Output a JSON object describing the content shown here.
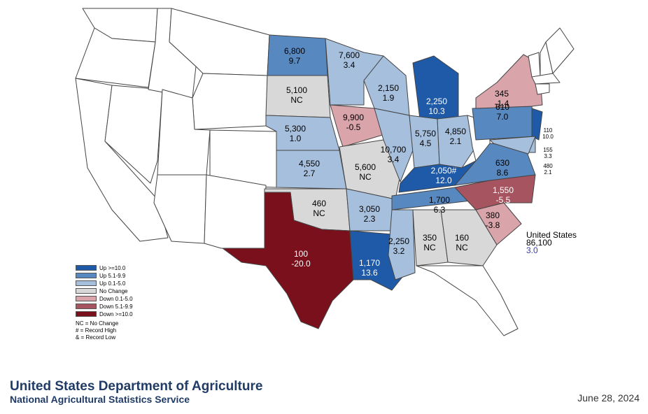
{
  "colors": {
    "up10": "#1f5aa8",
    "up5": "#5888c0",
    "up0": "#a6bfdd",
    "nc": "#d8d8d8",
    "down0": "#d9a5ab",
    "down5": "#a65560",
    "down10": "#7a101c",
    "outline": "#444444"
  },
  "legend": {
    "items": [
      {
        "label": "Up >=10.0",
        "color_key": "up10"
      },
      {
        "label": "Up 5.1-9.9",
        "color_key": "up5"
      },
      {
        "label": "Up 0.1-5.0",
        "color_key": "up0"
      },
      {
        "label": "No Change",
        "color_key": "nc"
      },
      {
        "label": "Down 0.1-5.0",
        "color_key": "down0"
      },
      {
        "label": "Down 5.1-9.9",
        "color_key": "down5"
      },
      {
        "label": "Down >=10.0",
        "color_key": "down10"
      }
    ],
    "notes": [
      "NC = No Change",
      "# = Record High",
      "& = Record Low"
    ]
  },
  "states": [
    {
      "name": "ND",
      "value": "6,800",
      "change": "9.7",
      "cat": "up5"
    },
    {
      "name": "SD",
      "value": "5,100",
      "change": "NC",
      "cat": "nc"
    },
    {
      "name": "NE",
      "value": "5,300",
      "change": "1.0",
      "cat": "up0"
    },
    {
      "name": "KS",
      "value": "4,550",
      "change": "2.7",
      "cat": "up0"
    },
    {
      "name": "OK",
      "value": "460",
      "change": "NC",
      "cat": "nc"
    },
    {
      "name": "TX",
      "value": "100",
      "change": "-20.0",
      "cat": "down10"
    },
    {
      "name": "MN",
      "value": "7,600",
      "change": "3.4",
      "cat": "up0"
    },
    {
      "name": "IA",
      "value": "9,900",
      "change": "-0.5",
      "cat": "down0"
    },
    {
      "name": "MO",
      "value": "5,600",
      "change": "NC",
      "cat": "nc"
    },
    {
      "name": "AR",
      "value": "3,050",
      "change": "2.3",
      "cat": "up0"
    },
    {
      "name": "LA",
      "value": "1,170",
      "change": "13.6",
      "cat": "up10"
    },
    {
      "name": "WI",
      "value": "2,150",
      "change": "1.9",
      "cat": "up0"
    },
    {
      "name": "IL",
      "value": "10,700",
      "change": "3.4",
      "cat": "up0"
    },
    {
      "name": "MS",
      "value": "2,250",
      "change": "3.2",
      "cat": "up0"
    },
    {
      "name": "MI",
      "value": "2,250",
      "change": "10.3",
      "cat": "up10"
    },
    {
      "name": "IN",
      "value": "5,750",
      "change": "4.5",
      "cat": "up0"
    },
    {
      "name": "KY",
      "value": "2,050#",
      "change": "12.0",
      "cat": "up10"
    },
    {
      "name": "TN",
      "value": "1,700",
      "change": "6.3",
      "cat": "up5"
    },
    {
      "name": "AL",
      "value": "350",
      "change": "NC",
      "cat": "nc"
    },
    {
      "name": "OH",
      "value": "4,850",
      "change": "2.1",
      "cat": "up0"
    },
    {
      "name": "GA",
      "value": "160",
      "change": "NC",
      "cat": "nc"
    },
    {
      "name": "PA",
      "value": "610",
      "change": "7.0",
      "cat": "up5"
    },
    {
      "name": "NY",
      "value": "345",
      "change": "-1.4",
      "cat": "down0"
    },
    {
      "name": "VA",
      "value": "630",
      "change": "8.6",
      "cat": "up5"
    },
    {
      "name": "NC",
      "value": "1,550",
      "change": "-5.5",
      "cat": "down5"
    },
    {
      "name": "SC",
      "value": "380",
      "change": "-3.8",
      "cat": "down0"
    },
    {
      "name": "NJ",
      "value": "110",
      "change": "10.0",
      "cat": "up10"
    },
    {
      "name": "DE",
      "value": "155",
      "change": "3.3",
      "cat": "up0"
    },
    {
      "name": "MD",
      "value": "480",
      "change": "2.1",
      "cat": "up0"
    }
  ],
  "us_total": {
    "label": "United States",
    "value": "86,100",
    "change": "3.0"
  },
  "footer": {
    "department": "United States Department of Agriculture",
    "service": "National Agricultural Statistics Service",
    "date": "June 28, 2024"
  }
}
